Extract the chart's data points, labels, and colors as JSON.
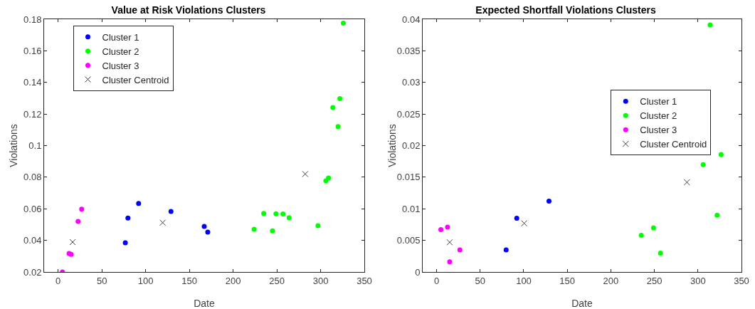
{
  "chart_data": [
    {
      "type": "scatter",
      "title": "Value at Risk Violations Clusters",
      "xlabel": "Date",
      "ylabel": "Violations",
      "xlim": [
        -16,
        350
      ],
      "xticks": [
        0,
        50,
        100,
        150,
        200,
        250,
        300,
        350
      ],
      "ylim": [
        0.02,
        0.18
      ],
      "yticks": [
        0.02,
        0.04,
        0.06,
        0.08,
        0.1,
        0.12,
        0.14,
        0.16,
        0.18
      ],
      "grid": false,
      "legend": "top left",
      "series": [
        {
          "name": "Cluster 1",
          "color": "#0000ff",
          "marker": "circle",
          "x": [
            76.8,
            79.8,
            92,
            129,
            167,
            171
          ],
          "values": [
            0.0385,
            0.0541,
            0.0634,
            0.0583,
            0.0488,
            0.0452
          ]
        },
        {
          "name": "Cluster 2",
          "color": "#00ff00",
          "marker": "circle",
          "x": [
            224,
            235,
            245,
            249,
            257,
            264,
            297,
            306,
            309,
            314,
            320,
            322,
            326
          ],
          "values": [
            0.047,
            0.0571,
            0.046,
            0.0568,
            0.0567,
            0.0544,
            0.0493,
            0.0777,
            0.0795,
            0.1241,
            0.1121,
            0.1298,
            0.1775
          ]
        },
        {
          "name": "Cluster 3",
          "color": "#ff00ff",
          "marker": "circle",
          "x": [
            4.9,
            12.5,
            14.9,
            22.8,
            26.9
          ],
          "values": [
            0.02,
            0.0317,
            0.0311,
            0.052,
            0.0598
          ]
        },
        {
          "name": "Cluster Centroid",
          "color": "#404040",
          "marker": "cross",
          "x": [
            16.6,
            119.5,
            282.4
          ],
          "values": [
            0.0389,
            0.0512,
            0.082
          ]
        }
      ]
    },
    {
      "type": "scatter",
      "title": "Expected Shortfall Violations Clusters",
      "xlabel": "Date",
      "ylabel": "Violations",
      "xlim": [
        -16,
        350
      ],
      "xticks": [
        0,
        50,
        100,
        150,
        200,
        250,
        300,
        350
      ],
      "ylim": [
        0,
        0.04
      ],
      "yticks": [
        0,
        0.005,
        0.01,
        0.015,
        0.02,
        0.025,
        0.03,
        0.035,
        0.04
      ],
      "grid": false,
      "legend": "right",
      "series": [
        {
          "name": "Cluster 1",
          "color": "#0000ff",
          "marker": "circle",
          "x": [
            79.8,
            92,
            129
          ],
          "values": [
            0.0035,
            0.0085,
            0.0112
          ]
        },
        {
          "name": "Cluster 2",
          "color": "#00ff00",
          "marker": "circle",
          "x": [
            235,
            249,
            257,
            306,
            314,
            322,
            326.6
          ],
          "values": [
            0.0058,
            0.007,
            0.003,
            0.017,
            0.0391,
            0.009,
            0.0186
          ]
        },
        {
          "name": "Cluster 3",
          "color": "#ff00ff",
          "marker": "circle",
          "x": [
            4.9,
            12.5,
            15,
            26.7
          ],
          "values": [
            0.0067,
            0.0071,
            0.0016,
            0.0035
          ]
        },
        {
          "name": "Cluster Centroid",
          "color": "#404040",
          "marker": "cross",
          "x": [
            15,
            100.5,
            287.4
          ],
          "values": [
            0.0047,
            0.0077,
            0.0142
          ]
        }
      ]
    }
  ]
}
